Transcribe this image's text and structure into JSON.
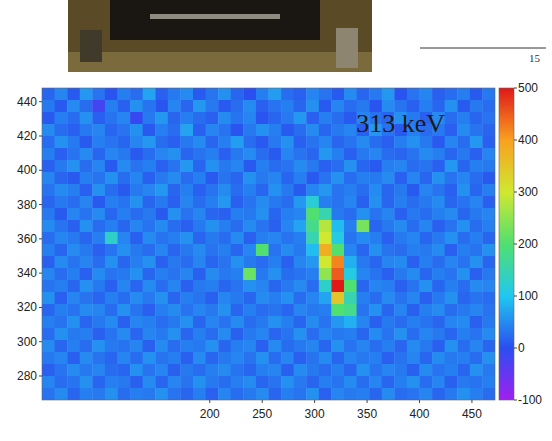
{
  "page": {
    "number": "15"
  },
  "chart_data": {
    "type": "heatmap",
    "annotation": "313 keV",
    "xlim": [
      40,
      472
    ],
    "ylim": [
      266,
      448
    ],
    "xticks": [
      200,
      250,
      300,
      350,
      400,
      450
    ],
    "yticks": [
      280,
      300,
      320,
      340,
      360,
      380,
      400,
      420,
      440
    ],
    "colorbar": {
      "range": [
        -100,
        500
      ],
      "ticks": [
        -100,
        0,
        100,
        200,
        300,
        400,
        500
      ]
    },
    "x": [
      46,
      58,
      70,
      82,
      94,
      106,
      118,
      130,
      142,
      154,
      166,
      178,
      190,
      202,
      214,
      226,
      238,
      250,
      262,
      274,
      286,
      298,
      310,
      322,
      334,
      346,
      358,
      370,
      382,
      394,
      406,
      418,
      430,
      442,
      454,
      466
    ],
    "y": [
      444.5,
      437.5,
      430.5,
      423.5,
      416.5,
      409.5,
      402.5,
      395.5,
      388.5,
      381.5,
      374.5,
      367.5,
      360.5,
      353.5,
      346.5,
      339.5,
      332.5,
      325.5,
      318.5,
      311.5,
      304.5,
      297.5,
      290.5,
      283.5,
      276.5,
      269.5
    ],
    "z": [
      [
        20,
        45,
        10,
        60,
        30,
        5,
        40,
        25,
        70,
        15,
        35,
        50,
        10,
        30,
        55,
        20,
        0,
        40,
        65,
        25,
        15,
        45,
        30,
        10,
        50,
        20,
        35,
        60,
        5,
        30,
        45,
        15,
        25,
        40,
        10,
        35
      ],
      [
        35,
        10,
        50,
        25,
        -20,
        40,
        15,
        55,
        30,
        5,
        45,
        20,
        60,
        35,
        10,
        25,
        50,
        15,
        30,
        40,
        20,
        55,
        10,
        45,
        25,
        35,
        5,
        50,
        30,
        15,
        40,
        20,
        55,
        10,
        35,
        25
      ],
      [
        10,
        40,
        25,
        55,
        15,
        30,
        45,
        -10,
        35,
        60,
        20,
        40,
        25,
        15,
        50,
        30,
        45,
        5,
        20,
        35,
        60,
        15,
        40,
        25,
        10,
        45,
        30,
        20,
        55,
        35,
        15,
        50,
        25,
        40,
        20,
        30
      ],
      [
        50,
        25,
        15,
        35,
        45,
        20,
        30,
        55,
        10,
        40,
        25,
        70,
        15,
        45,
        30,
        5,
        35,
        55,
        40,
        10,
        25,
        50,
        20,
        35,
        45,
        15,
        60,
        30,
        10,
        40,
        25,
        35,
        15,
        50,
        30,
        20
      ],
      [
        25,
        55,
        35,
        10,
        40,
        30,
        20,
        45,
        60,
        25,
        15,
        35,
        50,
        20,
        40,
        65,
        25,
        10,
        35,
        55,
        15,
        30,
        45,
        20,
        30,
        50,
        25,
        15,
        40,
        55,
        35,
        10,
        45,
        25,
        60,
        15
      ],
      [
        40,
        15,
        30,
        50,
        20,
        45,
        35,
        10,
        25,
        45,
        55,
        20,
        30,
        40,
        15,
        35,
        50,
        25,
        10,
        45,
        30,
        20,
        60,
        40,
        15,
        35,
        45,
        25,
        20,
        30,
        50,
        40,
        20,
        35,
        15,
        45
      ],
      [
        15,
        35,
        55,
        25,
        45,
        10,
        50,
        30,
        40,
        15,
        30,
        60,
        20,
        55,
        35,
        45,
        10,
        40,
        25,
        30,
        50,
        35,
        15,
        25,
        55,
        20,
        10,
        40,
        45,
        25,
        30,
        15,
        60,
        20,
        40,
        35
      ],
      [
        45,
        20,
        10,
        40,
        30,
        55,
        25,
        45,
        15,
        35,
        50,
        25,
        40,
        10,
        30,
        20,
        55,
        35,
        45,
        20,
        40,
        10,
        30,
        55,
        25,
        40,
        35,
        50,
        15,
        45,
        20,
        55,
        30,
        45,
        25,
        10
      ],
      [
        30,
        50,
        40,
        15,
        55,
        25,
        10,
        35,
        45,
        60,
        20,
        40,
        15,
        30,
        50,
        25,
        40,
        20,
        55,
        35,
        10,
        45,
        60,
        30,
        40,
        25,
        50,
        20,
        35,
        10,
        45,
        30,
        15,
        55,
        20,
        40
      ],
      [
        20,
        35,
        25,
        45,
        10,
        40,
        30,
        55,
        20,
        35,
        15,
        45,
        25,
        40,
        60,
        15,
        30,
        50,
        35,
        25,
        60,
        120,
        40,
        30,
        45,
        15,
        55,
        20,
        40,
        25,
        35,
        50,
        20,
        30,
        45,
        15
      ],
      [
        35,
        10,
        45,
        30,
        50,
        20,
        40,
        25,
        35,
        10,
        55,
        30,
        45,
        20,
        15,
        40,
        35,
        55,
        20,
        40,
        45,
        200,
        150,
        35,
        25,
        55,
        30,
        45,
        15,
        35,
        25,
        40,
        50,
        20,
        35,
        45
      ],
      [
        50,
        30,
        15,
        55,
        25,
        40,
        20,
        45,
        30,
        50,
        25,
        15,
        35,
        55,
        40,
        25,
        50,
        30,
        15,
        45,
        70,
        180,
        280,
        90,
        40,
        230,
        20,
        35,
        50,
        25,
        45,
        15,
        30,
        55,
        25,
        40
      ],
      [
        25,
        45,
        35,
        20,
        40,
        130,
        45,
        15,
        50,
        30,
        40,
        55,
        20,
        35,
        25,
        50,
        15,
        40,
        45,
        30,
        40,
        150,
        300,
        110,
        30,
        50,
        40,
        15,
        35,
        45,
        20,
        35,
        55,
        25,
        40,
        20
      ],
      [
        40,
        20,
        50,
        35,
        15,
        30,
        55,
        35,
        25,
        45,
        20,
        35,
        50,
        30,
        40,
        20,
        45,
        200,
        30,
        50,
        35,
        90,
        380,
        200,
        45,
        20,
        55,
        30,
        25,
        40,
        35,
        50,
        15,
        40,
        30,
        55
      ],
      [
        15,
        50,
        30,
        45,
        25,
        55,
        20,
        40,
        55,
        15,
        35,
        25,
        45,
        20,
        30,
        55,
        35,
        25,
        40,
        15,
        45,
        60,
        300,
        420,
        80,
        35,
        20,
        45,
        50,
        15,
        40,
        25,
        45,
        30,
        55,
        20
      ],
      [
        45,
        25,
        40,
        15,
        50,
        30,
        35,
        55,
        20,
        40,
        30,
        45,
        15,
        50,
        35,
        40,
        220,
        35,
        55,
        25,
        30,
        40,
        250,
        450,
        110,
        45,
        30,
        15,
        35,
        50,
        20,
        40,
        30,
        55,
        15,
        35
      ],
      [
        30,
        40,
        20,
        55,
        35,
        15,
        45,
        20,
        50,
        25,
        45,
        15,
        35,
        40,
        20,
        30,
        55,
        45,
        20,
        35,
        50,
        25,
        130,
        500,
        200,
        20,
        45,
        40,
        15,
        30,
        55,
        20,
        40,
        25,
        50,
        45
      ],
      [
        55,
        15,
        45,
        30,
        20,
        40,
        25,
        50,
        35,
        55,
        20,
        40,
        30,
        15,
        45,
        35,
        20,
        50,
        40,
        55,
        25,
        45,
        70,
        350,
        150,
        40,
        25,
        50,
        30,
        45,
        15,
        35,
        55,
        20,
        30,
        25
      ],
      [
        20,
        40,
        30,
        50,
        45,
        25,
        55,
        30,
        15,
        40,
        50,
        30,
        45,
        35,
        55,
        20,
        40,
        25,
        30,
        20,
        45,
        35,
        40,
        200,
        180,
        30,
        55,
        20,
        45,
        15,
        40,
        50,
        25,
        35,
        45,
        30
      ],
      [
        40,
        30,
        55,
        20,
        35,
        50,
        15,
        45,
        40,
        25,
        35,
        55,
        20,
        45,
        30,
        50,
        25,
        35,
        55,
        40,
        20,
        50,
        30,
        60,
        80,
        45,
        15,
        35,
        25,
        40,
        30,
        20,
        45,
        50,
        15,
        35
      ],
      [
        25,
        55,
        35,
        40,
        15,
        30,
        50,
        20,
        45,
        35,
        55,
        20,
        40,
        25,
        50,
        15,
        35,
        45,
        20,
        30,
        55,
        25,
        45,
        35,
        40,
        20,
        50,
        30,
        55,
        25,
        45,
        35,
        20,
        40,
        30,
        50
      ],
      [
        50,
        20,
        40,
        25,
        55,
        35,
        30,
        45,
        15,
        50,
        25,
        40,
        35,
        55,
        20,
        40,
        45,
        15,
        50,
        25,
        35,
        45,
        20,
        55,
        30,
        45,
        25,
        40,
        20,
        50,
        35,
        15,
        55,
        25,
        45,
        20
      ],
      [
        35,
        45,
        15,
        50,
        30,
        20,
        45,
        25,
        55,
        30,
        40,
        15,
        50,
        20,
        35,
        45,
        30,
        55,
        25,
        45,
        15,
        30,
        50,
        20,
        45,
        35,
        40,
        15,
        30,
        45,
        20,
        50,
        35,
        40,
        25,
        55
      ],
      [
        15,
        30,
        50,
        35,
        45,
        25,
        20,
        55,
        30,
        45,
        15,
        35,
        25,
        40,
        50,
        30,
        20,
        40,
        45,
        15,
        50,
        35,
        25,
        40,
        20,
        55,
        30,
        45,
        35,
        15,
        50,
        30,
        40,
        20,
        55,
        35
      ],
      [
        45,
        25,
        30,
        55,
        20,
        40,
        35,
        15,
        50,
        20,
        45,
        30,
        55,
        35,
        25,
        40,
        50,
        20,
        30,
        55,
        35,
        20,
        40,
        30,
        50,
        25,
        45,
        20,
        40,
        55,
        25,
        45,
        15,
        35,
        30,
        40
      ],
      [
        30,
        50,
        20,
        40,
        35,
        55,
        25,
        40,
        35,
        55,
        30,
        20,
        40,
        15,
        45,
        25,
        35,
        50,
        20,
        40,
        30,
        55,
        15,
        45,
        35,
        40,
        20,
        50,
        25,
        30,
        45,
        20,
        35,
        55,
        40,
        25
      ]
    ]
  }
}
